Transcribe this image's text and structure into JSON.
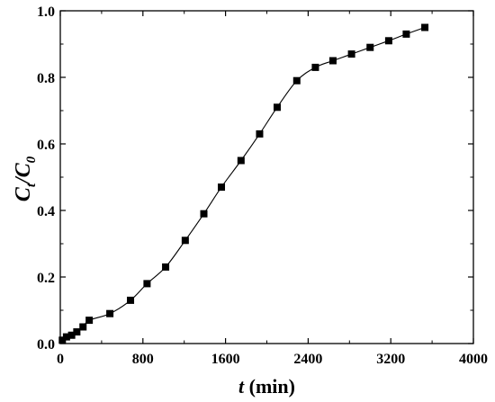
{
  "chart_data": {
    "type": "line",
    "markers": "square",
    "xlabel": {
      "var": "t",
      "unit": " (min)"
    },
    "ylabel": {
      "main": "C",
      "sub1": "t",
      "mid": "/C",
      "sub2": "0"
    },
    "xlim": [
      0,
      4000
    ],
    "ylim": [
      0,
      1.0
    ],
    "x_ticks": [
      0,
      800,
      1600,
      2400,
      3200,
      4000
    ],
    "x_tick_labels": [
      "0",
      "800",
      "1600",
      "2400",
      "3200",
      "4000"
    ],
    "y_ticks": [
      0,
      0.2,
      0.4,
      0.6,
      0.8,
      1.0
    ],
    "y_tick_labels": [
      "0.0",
      "0.2",
      "0.4",
      "0.6",
      "0.8",
      "1.0"
    ],
    "grid": false,
    "series": [
      {
        "x": [
          20,
          60,
          110,
          160,
          220,
          280,
          480,
          680,
          840,
          1020,
          1210,
          1390,
          1560,
          1750,
          1930,
          2100,
          2290,
          2470,
          2640,
          2820,
          3000,
          3180,
          3350,
          3530
        ],
        "y": [
          0.01,
          0.02,
          0.025,
          0.035,
          0.05,
          0.07,
          0.09,
          0.13,
          0.18,
          0.23,
          0.31,
          0.39,
          0.47,
          0.55,
          0.63,
          0.71,
          0.79,
          0.83,
          0.85,
          0.87,
          0.89,
          0.91,
          0.93,
          0.95
        ]
      }
    ]
  },
  "colors": {
    "axis": "#000000",
    "marker": "#000000",
    "line": "#000000"
  }
}
